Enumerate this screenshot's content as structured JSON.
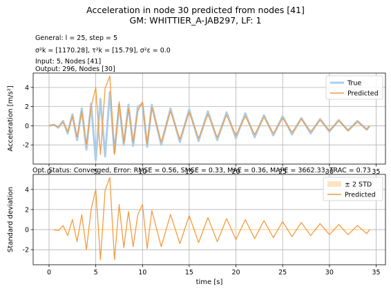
{
  "figure": {
    "title_line1": "Acceleration in node 30 predicted from nodes [41]",
    "title_line2": "GM: WHITTIER_A-JAB297, LF: 1",
    "info": {
      "general": "General: l = 25, step = 5",
      "sigma": "σ²k = [1170.28], τ²k = [15.79], σ²ε = 0.0",
      "input": "Input: 5, Nodes [41]",
      "output": "Output: 296, Nodes [30]"
    },
    "status": "Opt. Status: Converged, Error: RMSE = 0.56, SMSE = 0.33, MAE = 0.36, MAPE = 3662.33, TRAC = 0.73"
  },
  "colors": {
    "true": "#aecde6",
    "predicted": "#f59a3e",
    "band": "#fde3c0",
    "grid": "#b0b0b0"
  },
  "chart_data": [
    {
      "type": "line",
      "xlabel": "",
      "ylabel": "Acceleration [m/s²]",
      "xlim": [
        -1.7,
        36
      ],
      "ylim": [
        -4,
        5.5
      ],
      "xticks": [
        0,
        5,
        10,
        15,
        20,
        25,
        30,
        35
      ],
      "yticks": [
        -2,
        0,
        2,
        4
      ],
      "grid": true,
      "legend": "top-right",
      "series": [
        {
          "name": "True",
          "x": [
            0,
            0.5,
            1,
            1.5,
            2,
            2.5,
            3,
            3.5,
            4,
            4.5,
            5,
            5.5,
            6,
            6.5,
            7,
            7.5,
            8,
            8.5,
            9,
            9.5,
            10,
            10.5,
            11,
            12,
            13,
            14,
            15,
            16,
            17,
            18,
            19,
            20,
            21,
            22,
            23,
            24,
            25,
            26,
            27,
            28,
            29,
            30,
            31,
            32,
            33,
            34,
            34.3
          ],
          "y": [
            0,
            0.1,
            -0.2,
            0.5,
            -0.8,
            1.2,
            -1.5,
            1.8,
            -2.5,
            2.3,
            -3.6,
            2.8,
            -3.2,
            3.5,
            -2.8,
            2.2,
            -2.0,
            2.2,
            -2.1,
            2.0,
            2.3,
            -2.2,
            2.2,
            -2.0,
            1.8,
            -1.7,
            1.7,
            -1.6,
            1.5,
            -1.5,
            1.4,
            -1.3,
            1.3,
            -1.2,
            1.1,
            -1.0,
            1.0,
            -0.9,
            0.8,
            -0.8,
            0.7,
            -0.6,
            0.6,
            -0.5,
            0.5,
            -0.4,
            0
          ]
        },
        {
          "name": "Predicted",
          "x": [
            0,
            0.5,
            1,
            1.5,
            2,
            2.5,
            3,
            3.5,
            4,
            4.5,
            5,
            5.5,
            6,
            6.5,
            7,
            7.5,
            8,
            8.5,
            9,
            9.5,
            10,
            10.5,
            11,
            12,
            13,
            14,
            15,
            16,
            17,
            18,
            19,
            20,
            21,
            22,
            23,
            24,
            25,
            26,
            27,
            28,
            29,
            30,
            31,
            32,
            33,
            34,
            34.3
          ],
          "y": [
            0,
            0.1,
            -0.1,
            0.4,
            -0.6,
            1.0,
            -1.2,
            1.5,
            -2.0,
            2.0,
            4.0,
            -3.0,
            3.9,
            5.2,
            -3.0,
            2.5,
            -1.8,
            1.8,
            -1.7,
            1.5,
            2.5,
            -1.9,
            1.9,
            -1.7,
            1.5,
            -1.4,
            1.4,
            -1.3,
            1.2,
            -1.2,
            1.1,
            -1.0,
            1.0,
            -0.9,
            0.9,
            -0.8,
            0.8,
            -0.7,
            0.7,
            -0.6,
            0.6,
            -0.5,
            0.5,
            -0.5,
            0.4,
            -0.4,
            0
          ]
        }
      ]
    },
    {
      "type": "line",
      "xlabel": "time [s]",
      "ylabel": "Standard deviation",
      "xlim": [
        -1.7,
        36
      ],
      "ylim": [
        -3.5,
        5.5
      ],
      "xticks": [
        0,
        5,
        10,
        15,
        20,
        25,
        30,
        35
      ],
      "yticks": [
        -2,
        0,
        2,
        4
      ],
      "grid": true,
      "legend": "top-right",
      "series": [
        {
          "name": "± 2 STD",
          "x": [
            0.5,
            34.3
          ],
          "y": [
            0.0,
            0.0
          ]
        },
        {
          "name": "Predicted",
          "x": [
            0.5,
            1,
            1.5,
            2,
            2.5,
            3,
            3.5,
            4,
            4.5,
            5,
            5.5,
            6,
            6.5,
            7,
            7.5,
            8,
            8.5,
            9,
            9.5,
            10,
            10.5,
            11,
            12,
            13,
            14,
            15,
            16,
            17,
            18,
            19,
            20,
            21,
            22,
            23,
            24,
            25,
            26,
            27,
            28,
            29,
            30,
            31,
            32,
            33,
            34,
            34.3
          ],
          "y": [
            0,
            -0.1,
            0.4,
            -0.6,
            1.0,
            -1.2,
            1.5,
            -2.0,
            2.0,
            4.0,
            -3.0,
            3.9,
            5.2,
            -3.0,
            2.5,
            -1.8,
            1.8,
            -1.7,
            1.5,
            2.5,
            -1.9,
            1.9,
            -1.7,
            1.5,
            -1.4,
            1.4,
            -1.3,
            1.2,
            -1.2,
            1.1,
            -1.0,
            1.0,
            -0.9,
            0.9,
            -0.8,
            0.8,
            -0.7,
            0.7,
            -0.6,
            0.6,
            -0.5,
            0.5,
            -0.5,
            0.4,
            -0.4,
            0
          ]
        }
      ]
    }
  ]
}
